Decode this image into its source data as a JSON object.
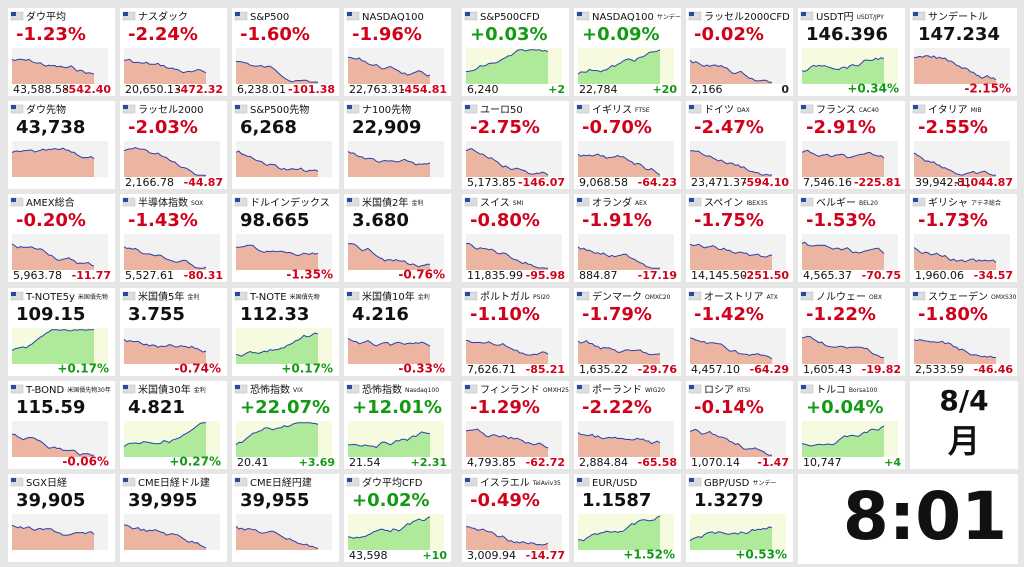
{
  "left": [
    {
      "name": "ダウ平均",
      "pct": "-1.23%",
      "price": "43,588.58",
      "chg": "-542.40"
    },
    {
      "name": "ナスダック",
      "pct": "-2.24%",
      "price": "20,650.13",
      "chg": "-472.32"
    },
    {
      "name": "S&P500",
      "pct": "-1.60%",
      "price": "6,238.01",
      "chg": "-101.38"
    },
    {
      "name": "NASDAQ100",
      "pct": "-1.96%",
      "price": "22,763.31",
      "chg": "-454.81"
    },
    {
      "name": "ダウ先物",
      "price": "43,738"
    },
    {
      "name": "ラッセル2000",
      "pct": "-2.03%",
      "price": "2,166.78",
      "chg": "-44.87"
    },
    {
      "name": "S&P500先物",
      "price": "6,268"
    },
    {
      "name": "ナ100先物",
      "price": "22,909"
    },
    {
      "name": "AMEX総合",
      "pct": "-0.20%",
      "price": "5,963.78",
      "chg": "-11.77"
    },
    {
      "name": "半導体指数",
      "sub": "SOX",
      "pct": "-1.43%",
      "price": "5,527.61",
      "chg": "-80.31"
    },
    {
      "name": "ドルインデックス",
      "big": "98.665",
      "foot": "-1.35%"
    },
    {
      "name": "米国債2年",
      "sub": "金利",
      "big": "3.680",
      "foot": "-0.76%"
    },
    {
      "name": "T-NOTE5y",
      "sub": "米国債先物",
      "big": "109.15",
      "foot": "+0.17%"
    },
    {
      "name": "米国債5年",
      "sub": "金利",
      "big": "3.755",
      "foot": "-0.74%"
    },
    {
      "name": "T-NOTE",
      "sub": "米国債先物",
      "big": "112.33",
      "foot": "+0.17%"
    },
    {
      "name": "米国債10年",
      "sub": "金利",
      "big": "4.216",
      "foot": "-0.33%"
    },
    {
      "name": "T-BOND",
      "sub": "米国債先物30年",
      "big": "115.59",
      "foot": "-0.06%"
    },
    {
      "name": "米国債30年",
      "sub": "金利",
      "big": "4.821",
      "foot": "+0.27%"
    },
    {
      "name": "恐怖指数",
      "sub": "VIX",
      "pct": "+22.07%",
      "price": "20.41",
      "chg": "+3.69"
    },
    {
      "name": "恐怖指数",
      "sub": "Nasdaq100",
      "pct": "+12.01%",
      "price": "21.54",
      "chg": "+2.31"
    },
    {
      "name": "SGX日経",
      "price": "39,905"
    },
    {
      "name": "CME日経ドル建",
      "price": "39,995"
    },
    {
      "name": "CME日経円建",
      "price": "39,955"
    },
    {
      "name": "ダウ平均CFD",
      "pct": "+0.02%",
      "price": "43,598",
      "chg": "+10"
    }
  ],
  "right": [
    {
      "name": "S&P500CFD",
      "pct": "+0.03%",
      "price": "6,240",
      "chg": "+2"
    },
    {
      "name": "NASDAQ100",
      "sub": "サンデー",
      "pct": "+0.09%",
      "price": "22,784",
      "chg": "+20"
    },
    {
      "name": "ラッセル2000CFD",
      "pct": "-0.02%",
      "price": "2,166",
      "chg": "0"
    },
    {
      "name": "USDT円",
      "sub": "USDT/JPY",
      "big": "146.396",
      "foot": "+0.34%"
    },
    {
      "name": "サンデートル",
      "big": "147.234",
      "foot": "-2.15%"
    },
    {
      "name": "ユーロ50",
      "pct": "-2.75%",
      "price": "5,173.85",
      "chg": "-146.07"
    },
    {
      "name": "イギリス",
      "sub": "FTSE",
      "pct": "-0.70%",
      "price": "9,068.58",
      "chg": "-64.23"
    },
    {
      "name": "ドイツ",
      "sub": "DAX",
      "pct": "-2.47%",
      "price": "23,471.37",
      "chg": "-594.10"
    },
    {
      "name": "フランス",
      "sub": "CAC40",
      "pct": "-2.91%",
      "price": "7,546.16",
      "chg": "-225.81"
    },
    {
      "name": "イタリア",
      "sub": "MIB",
      "pct": "-2.55%",
      "price": "39,942.81",
      "chg": "-1,044.87"
    },
    {
      "name": "スイス",
      "sub": "SMI",
      "pct": "-0.80%",
      "price": "11,835.99",
      "chg": "-95.98"
    },
    {
      "name": "オランダ",
      "sub": "AEX",
      "pct": "-1.91%",
      "price": "884.87",
      "chg": "-17.19"
    },
    {
      "name": "スペイン",
      "sub": "IBEX35",
      "pct": "-1.75%",
      "price": "14,145.50",
      "chg": "-251.50"
    },
    {
      "name": "ベルギー",
      "sub": "BEL20",
      "pct": "-1.53%",
      "price": "4,565.37",
      "chg": "-70.75"
    },
    {
      "name": "ギリシャ",
      "sub": "アテネ総合",
      "pct": "-1.73%",
      "price": "1,960.06",
      "chg": "-34.57"
    },
    {
      "name": "ポルトガル",
      "sub": "PSI20",
      "pct": "-1.10%",
      "price": "7,626.71",
      "chg": "-85.21"
    },
    {
      "name": "デンマーク",
      "sub": "OMXC20",
      "pct": "-1.79%",
      "price": "1,635.22",
      "chg": "-29.76"
    },
    {
      "name": "オーストリア",
      "sub": "ATX",
      "pct": "-1.42%",
      "price": "4,457.10",
      "chg": "-64.29"
    },
    {
      "name": "ノルウェー",
      "sub": "OBX",
      "pct": "-1.22%",
      "price": "1,605.43",
      "chg": "-19.82"
    },
    {
      "name": "スウェーデン",
      "sub": "OMXS30",
      "pct": "-1.80%",
      "price": "2,533.59",
      "chg": "-46.46"
    },
    {
      "name": "フィンランド",
      "sub": "OMXH25",
      "pct": "-1.29%",
      "price": "4,793.85",
      "chg": "-62.72"
    },
    {
      "name": "ポーランド",
      "sub": "WIG20",
      "pct": "-2.22%",
      "price": "2,884.84",
      "chg": "-65.58"
    },
    {
      "name": "ロシア",
      "sub": "RTSI",
      "pct": "-0.14%",
      "price": "1,070.14",
      "chg": "-1.47"
    },
    {
      "name": "トルコ",
      "sub": "Borsa100",
      "pct": "+0.04%",
      "price": "10,747",
      "chg": "+4"
    },
    {
      "name": "イスラエル",
      "sub": "TelAviv35",
      "pct": "-0.49%",
      "price": "3,009.94",
      "chg": "-14.77"
    },
    {
      "name": "EUR/USD",
      "big": "1.1587",
      "foot": "+1.52%"
    },
    {
      "name": "GBP/USD",
      "sub": "サンデー",
      "big": "1.3279",
      "foot": "+0.53%"
    }
  ],
  "date": {
    "day": "8/4",
    "weekday": "月"
  },
  "time": "8:01"
}
